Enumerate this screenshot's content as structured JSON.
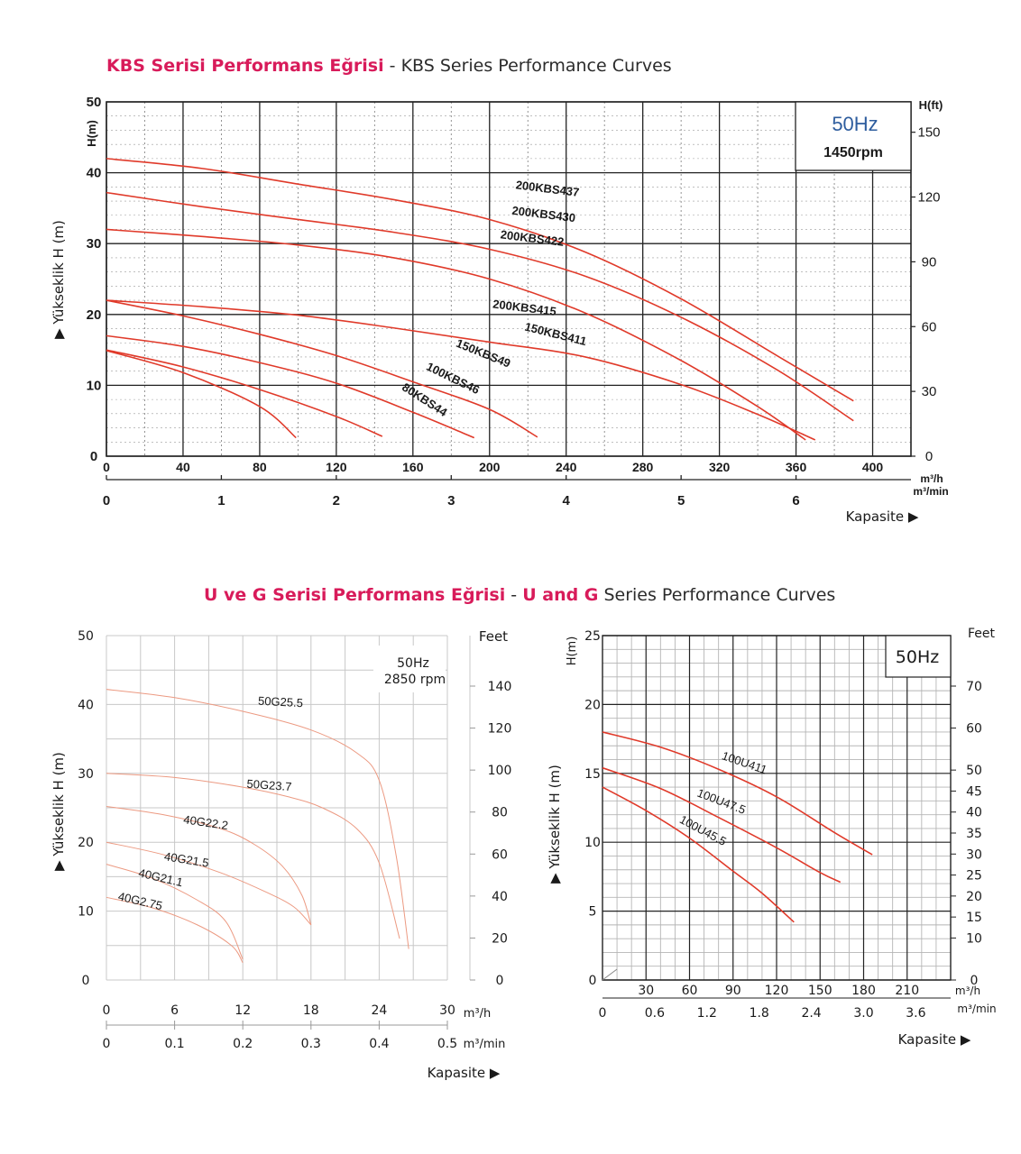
{
  "titles": {
    "kbs_pink": "KBS Serisi Performans Eğrisi",
    "kbs_sep": " - ",
    "kbs_rest": "KBS Series Performance Curves",
    "ug_pink1": "U ve G Serisi Performans Eğrisi",
    "ug_sep": " - ",
    "ug_pink2": "U and G",
    "ug_rest": " Series Performance Curves"
  },
  "colors": {
    "curve": "#e03a2a",
    "curve_light": "#ec9a82",
    "grid": "#333333",
    "grid_light": "#c8c8c8",
    "hz_blue": "#2e5d9e",
    "accent": "#d81b5a"
  },
  "chart_data": [
    {
      "id": "kbs",
      "type": "line",
      "xlabel": "Kapasite ▶",
      "ylabel": "▶ Yükseklik H (m)",
      "y_unit_left": "H(m)",
      "y_unit_right": "H(ft)",
      "x_unit": "m³/h",
      "x2_unit": "m³/min",
      "hz": "50Hz",
      "rpm": "1450rpm",
      "xlim": [
        0,
        420
      ],
      "ylim": [
        0,
        50
      ],
      "x_ticks": [
        0,
        40,
        80,
        120,
        160,
        200,
        240,
        280,
        320,
        360,
        400
      ],
      "y_ticks": [
        0,
        10,
        20,
        30,
        40,
        50
      ],
      "x2_ticks": [
        0,
        1,
        2,
        3,
        4,
        5,
        6
      ],
      "y2_ticks": [
        0,
        30,
        60,
        90,
        120,
        150
      ],
      "grid": true,
      "series": [
        {
          "name": "200KBS437",
          "label_at": [
            230,
            37.2
          ],
          "label_rot": 7,
          "x": [
            0,
            50,
            100,
            150,
            200,
            250,
            300,
            350,
            390
          ],
          "y": [
            42,
            40.6,
            38.4,
            36.2,
            33.4,
            28.8,
            22.2,
            14.2,
            7.8
          ]
        },
        {
          "name": "200KBS430",
          "label_at": [
            228,
            33.6
          ],
          "label_rot": 7,
          "x": [
            0,
            50,
            100,
            150,
            200,
            250,
            300,
            350,
            390
          ],
          "y": [
            37.2,
            35.2,
            33.4,
            31.6,
            29.2,
            25.4,
            19.6,
            12.2,
            5
          ]
        },
        {
          "name": "200KBS422",
          "label_at": [
            222,
            30.2
          ],
          "label_rot": 7,
          "x": [
            0,
            50,
            100,
            150,
            200,
            250,
            300,
            340,
            365
          ],
          "y": [
            32,
            31,
            29.8,
            28,
            25,
            20.2,
            13.5,
            7,
            2.3
          ]
        },
        {
          "name": "200KBS415",
          "label_at": [
            218,
            20.4
          ],
          "label_rot": 7,
          "x": [
            0,
            50,
            100,
            150,
            200,
            250,
            300,
            340,
            370
          ],
          "y": [
            22,
            21.1,
            19.9,
            18.1,
            16.1,
            14,
            10.1,
            5.9,
            2.3
          ]
        },
        {
          "name": "150KBS411",
          "label_at": [
            234,
            16.7
          ],
          "label_rot": 14,
          "x": [
            0,
            40,
            80,
            120,
            160,
            200,
            225
          ],
          "y": [
            22,
            19.8,
            17.2,
            14.2,
            10.5,
            6.6,
            2.7
          ]
        },
        {
          "name": "150KBS49",
          "label_at": [
            196,
            14
          ],
          "label_rot": 22,
          "x": [
            0,
            40,
            80,
            120,
            160,
            192
          ],
          "y": [
            17,
            15.5,
            13.2,
            10.3,
            6.2,
            2.6
          ]
        },
        {
          "name": "100KBS46",
          "label_at": [
            180,
            10.5
          ],
          "label_rot": 26,
          "x": [
            0,
            40,
            80,
            120,
            144
          ],
          "y": [
            15,
            12.6,
            9.4,
            5.6,
            2.8
          ]
        },
        {
          "name": "80KBS44",
          "label_at": [
            165,
            7.5
          ],
          "label_rot": 33,
          "x": [
            0,
            40,
            80,
            99
          ],
          "y": [
            14.9,
            11.8,
            7,
            2.6
          ]
        }
      ]
    },
    {
      "id": "g",
      "type": "line",
      "xlabel": "Kapasite ▶",
      "ylabel": "▶ Yükseklik H (m)",
      "y_unit_right": "Feet",
      "x_unit": "m³/h",
      "x2_unit": "m³/min",
      "hz": "50Hz",
      "rpm": "2850 rpm",
      "xlim": [
        0,
        30
      ],
      "ylim": [
        0,
        50
      ],
      "x_ticks": [
        0,
        6,
        12,
        18,
        24,
        30
      ],
      "y_ticks": [
        0,
        10,
        20,
        30,
        40,
        50
      ],
      "x2_ticks": [
        "0",
        "0.1",
        "0.2",
        "0.3",
        "0.4",
        "0.5"
      ],
      "y2_ticks": [
        0,
        20,
        40,
        60,
        80,
        100,
        120,
        140
      ],
      "grid": true,
      "series": [
        {
          "name": "50G25.5",
          "label_at": [
            15.3,
            39.8
          ],
          "label_rot": 3,
          "x": [
            0,
            6,
            12,
            18,
            22,
            24,
            25.5,
            26.6
          ],
          "y": [
            42.2,
            41,
            39,
            36.3,
            33,
            29,
            18,
            4.5
          ]
        },
        {
          "name": "50G23.7",
          "label_at": [
            14.3,
            27.7
          ],
          "label_rot": 4,
          "x": [
            0,
            6,
            12,
            16,
            19,
            22,
            24,
            25.8
          ],
          "y": [
            30,
            29.4,
            28,
            26.6,
            25,
            22,
            17,
            6
          ]
        },
        {
          "name": "40G22.2",
          "label_at": [
            8.7,
            22.3
          ],
          "label_rot": 8,
          "x": [
            0,
            5,
            10,
            13,
            15.5,
            17.2,
            18
          ],
          "y": [
            25.2,
            24,
            22,
            19.7,
            16.5,
            12.3,
            8
          ]
        },
        {
          "name": "40G21.5",
          "label_at": [
            7,
            16.9
          ],
          "label_rot": 9,
          "x": [
            0,
            5,
            10,
            14,
            16.5,
            18
          ],
          "y": [
            20,
            18.2,
            15.6,
            12.8,
            10.6,
            8
          ]
        },
        {
          "name": "40G21.1",
          "label_at": [
            4.7,
            14.3
          ],
          "label_rot": 13,
          "x": [
            0,
            4,
            8,
            10.5,
            12
          ],
          "y": [
            16.8,
            14.8,
            11.6,
            8.5,
            3
          ]
        },
        {
          "name": "40G2.75",
          "label_at": [
            2.9,
            10.9
          ],
          "label_rot": 13,
          "x": [
            0,
            4,
            8,
            11,
            12
          ],
          "y": [
            12,
            10.5,
            8,
            5,
            2.5
          ]
        }
      ]
    },
    {
      "id": "u",
      "type": "line",
      "xlabel": "Kapasite ▶",
      "ylabel": "▶ Yükseklik H (m)",
      "y_unit_left": "H(m)",
      "y_unit_right": "Feet",
      "x_unit": "m³/h",
      "x2_unit": "m³/min",
      "hz": "50Hz",
      "xlim": [
        0,
        240
      ],
      "ylim": [
        0,
        25
      ],
      "x_ticks": [
        30,
        60,
        90,
        120,
        150,
        180,
        210
      ],
      "y_ticks": [
        0,
        5,
        10,
        15,
        20,
        25
      ],
      "x2_ticks": [
        "0",
        "0.6",
        "1.2",
        "1.8",
        "2.4",
        "3.0",
        "3.6"
      ],
      "y2_ticks": [
        0,
        10,
        15,
        20,
        25,
        30,
        35,
        40,
        45,
        50,
        60,
        70
      ],
      "grid": true,
      "series": [
        {
          "name": "100U411",
          "label_at": [
            97,
            15.5
          ],
          "label_rot": 19,
          "x": [
            0,
            40,
            80,
            120,
            160,
            186
          ],
          "y": [
            18,
            16.9,
            15.3,
            13.3,
            10.7,
            9.1
          ]
        },
        {
          "name": "100U47.5",
          "label_at": [
            81,
            12.7
          ],
          "label_rot": 21,
          "x": [
            0,
            40,
            80,
            120,
            150,
            164
          ],
          "y": [
            15.4,
            13.9,
            11.8,
            9.6,
            7.8,
            7.1
          ]
        },
        {
          "name": "100U45.5",
          "label_at": [
            68,
            10.6
          ],
          "label_rot": 28,
          "x": [
            0,
            30,
            60,
            90,
            110,
            132
          ],
          "y": [
            14,
            12.3,
            10.3,
            7.9,
            6.3,
            4.2
          ]
        }
      ]
    }
  ]
}
